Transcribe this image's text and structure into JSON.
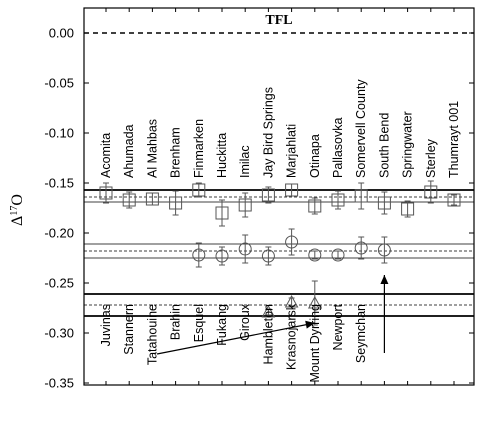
{
  "chart_data": {
    "type": "scatter",
    "title": "",
    "ylabel_main": "Δ",
    "ylabel_sup": "17",
    "ylabel_tail": "O",
    "ylim": [
      -0.35,
      0.02
    ],
    "yticks": [
      "0.00",
      "-0.05",
      "-0.10",
      "-0.15",
      "-0.20",
      "-0.25",
      "-0.30",
      "-0.35"
    ],
    "ytick_values": [
      0.0,
      -0.05,
      -0.1,
      -0.15,
      -0.2,
      -0.25,
      -0.3,
      -0.35
    ],
    "grid": false,
    "reference_line": {
      "label": "TFL",
      "value": 0.0
    },
    "top_names": [
      "Acomita",
      "Ahumada",
      "Al Mahbas",
      "Brenham",
      "Finmarken",
      "Huckitta",
      "Imilac",
      "Jay Bird Springs",
      "Marjahlati",
      "Otinapa",
      "Pallasovka",
      "Somervell County",
      "South Bend",
      "Springwater",
      "Sterley",
      "Thumrayt 001"
    ],
    "bottom_names": [
      "Juvinas",
      "Stannern",
      "Tatahouine",
      "Brahin",
      "Esquel",
      "Fukang",
      "Giroux",
      "Hambleton",
      "Krasnojarsk",
      "Mount Dyrring",
      "Newport",
      "Seymchan"
    ],
    "series": [
      {
        "marker": "square",
        "points": [
          {
            "x": 1,
            "y": -0.16,
            "err": 0.01
          },
          {
            "x": 2,
            "y": -0.167,
            "err": 0.008
          },
          {
            "x": 3,
            "y": -0.166,
            "err": 0.006
          },
          {
            "x": 4,
            "y": -0.17,
            "err": 0.012
          },
          {
            "x": 5,
            "y": -0.157,
            "err": 0.007
          },
          {
            "x": 6,
            "y": -0.18,
            "err": 0.013
          },
          {
            "x": 7,
            "y": -0.172,
            "err": 0.012
          },
          {
            "x": 8,
            "y": -0.162,
            "err": 0.008
          },
          {
            "x": 9,
            "y": -0.157,
            "err": 0.006
          },
          {
            "x": 10,
            "y": -0.173,
            "err": 0.008
          },
          {
            "x": 11,
            "y": -0.167,
            "err": 0.009
          },
          {
            "x": 12,
            "y": -0.163,
            "err": 0.013
          },
          {
            "x": 13,
            "y": -0.17,
            "err": 0.011
          },
          {
            "x": 14,
            "y": -0.176,
            "err": 0.008
          },
          {
            "x": 15,
            "y": -0.159,
            "err": 0.011
          },
          {
            "x": 16,
            "y": -0.167,
            "err": 0.005
          }
        ]
      },
      {
        "marker": "circle",
        "points": [
          {
            "x": 5,
            "y": -0.222,
            "err": 0.012
          },
          {
            "x": 6,
            "y": -0.223,
            "err": 0.009
          },
          {
            "x": 7,
            "y": -0.216,
            "err": 0.014
          },
          {
            "x": 8,
            "y": -0.223,
            "err": 0.009
          },
          {
            "x": 9,
            "y": -0.209,
            "err": 0.013
          },
          {
            "x": 10,
            "y": -0.222,
            "err": 0.004
          },
          {
            "x": 11,
            "y": -0.222,
            "err": 0.004
          },
          {
            "x": 12,
            "y": -0.215,
            "err": 0.011
          },
          {
            "x": 13,
            "y": -0.217,
            "err": 0.013
          }
        ]
      },
      {
        "marker": "triangle",
        "points": [
          {
            "x": 8,
            "y": -0.279,
            "err": 0.003
          },
          {
            "x": 9,
            "y": -0.269,
            "err": 0.004
          },
          {
            "x": 10,
            "y": -0.27,
            "err": 0.022
          }
        ]
      }
    ],
    "band_lines": [
      {
        "y": -0.157,
        "style": "solid",
        "weight": "thick"
      },
      {
        "y": -0.164,
        "style": "dashed",
        "weight": "thin"
      },
      {
        "y": -0.169,
        "style": "solid",
        "weight": "thin"
      },
      {
        "y": -0.211,
        "style": "solid",
        "weight": "thin"
      },
      {
        "y": -0.218,
        "style": "dashed",
        "weight": "thin"
      },
      {
        "y": -0.225,
        "style": "solid",
        "weight": "thin"
      },
      {
        "y": -0.261,
        "style": "solid",
        "weight": "thick"
      },
      {
        "y": -0.272,
        "style": "dashed",
        "weight": "thin"
      },
      {
        "y": -0.283,
        "style": "solid",
        "weight": "thick"
      }
    ],
    "arrows": [
      {
        "from": {
          "x": 3.2,
          "y": -0.321
        },
        "to": {
          "x": 10,
          "y": -0.29
        }
      },
      {
        "from": {
          "x": 13,
          "y": -0.32
        },
        "to": {
          "x": 13,
          "y": -0.242
        }
      }
    ]
  }
}
